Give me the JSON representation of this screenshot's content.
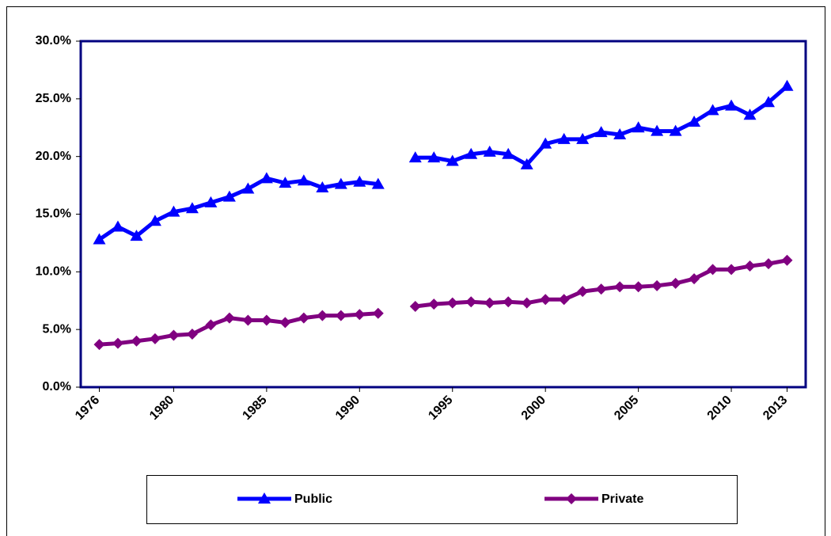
{
  "chart_data": {
    "type": "line",
    "x": [
      1976,
      1977,
      1978,
      1979,
      1980,
      1981,
      1982,
      1983,
      1984,
      1985,
      1986,
      1987,
      1988,
      1989,
      1990,
      1991,
      1992,
      1993,
      1994,
      1995,
      1996,
      1997,
      1998,
      1999,
      2000,
      2001,
      2002,
      2003,
      2004,
      2005,
      2006,
      2007,
      2008,
      2009,
      2010,
      2011,
      2012,
      2013
    ],
    "series": [
      {
        "name": "Public",
        "color": "#0000ff",
        "marker": "triangle",
        "values": [
          12.8,
          13.9,
          13.1,
          14.4,
          15.2,
          15.5,
          16.0,
          16.5,
          17.2,
          18.1,
          17.7,
          17.9,
          17.3,
          17.6,
          17.8,
          17.6,
          null,
          19.9,
          19.9,
          19.6,
          20.2,
          20.4,
          20.2,
          19.3,
          21.1,
          21.5,
          21.5,
          22.1,
          21.9,
          22.5,
          22.2,
          22.2,
          23.0,
          24.0,
          24.4,
          23.6,
          24.7,
          26.1
        ]
      },
      {
        "name": "Private",
        "color": "#800080",
        "marker": "diamond",
        "values": [
          3.7,
          3.8,
          4.0,
          4.2,
          4.5,
          4.6,
          5.4,
          6.0,
          5.8,
          5.8,
          5.6,
          6.0,
          6.2,
          6.2,
          6.3,
          6.4,
          null,
          7.0,
          7.2,
          7.3,
          7.4,
          7.3,
          7.4,
          7.3,
          7.6,
          7.6,
          8.3,
          8.5,
          8.7,
          8.7,
          8.8,
          9.0,
          9.4,
          10.2,
          10.2,
          10.5,
          10.7,
          11.0
        ]
      }
    ],
    "xlim": [
      1975,
      2014
    ],
    "xticks": [
      1976,
      1980,
      1985,
      1990,
      1995,
      2000,
      2005,
      2010,
      2013
    ],
    "ylim": [
      0,
      30
    ],
    "yticks": [
      {
        "value": 0,
        "label": "0.0%"
      },
      {
        "value": 5,
        "label": "5.0%"
      },
      {
        "value": 10,
        "label": "10.0%"
      },
      {
        "value": 15,
        "label": "15.0%"
      },
      {
        "value": 20,
        "label": "20.0%"
      },
      {
        "value": 25,
        "label": "25.0%"
      },
      {
        "value": 30,
        "label": "30.0%"
      }
    ],
    "legend": "bottom"
  }
}
